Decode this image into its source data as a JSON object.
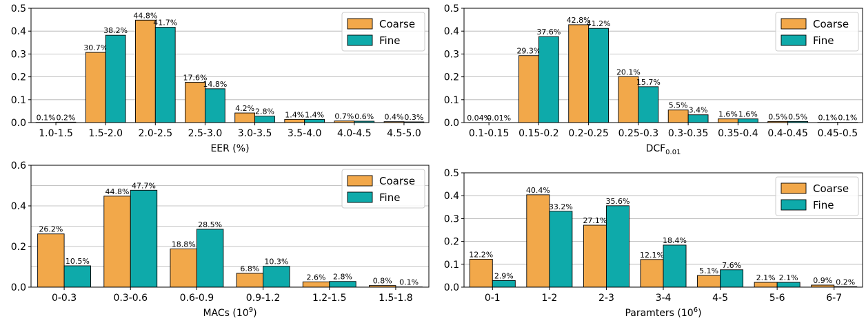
{
  "colors": {
    "coarse": "#f2a84a",
    "fine": "#0eaaaa",
    "grid": "#b0b0b0",
    "edge": "#000000"
  },
  "chart_data": [
    {
      "type": "bar",
      "xlabel": "EER (%)",
      "xlabel_sub": "",
      "xlabel_sup": "",
      "ylim": [
        0,
        0.5
      ],
      "yticks": [
        "0.0",
        "0.1",
        "0.2",
        "0.3",
        "0.4",
        "0.5"
      ],
      "categories": [
        "1.0-1.5",
        "1.5-2.0",
        "2.0-2.5",
        "2.5-3.0",
        "3.0-3.5",
        "3.5-4.0",
        "4.0-4.5",
        "4.5-5.0"
      ],
      "series": [
        {
          "name": "Coarse",
          "values": [
            0.001,
            0.307,
            0.448,
            0.176,
            0.042,
            0.014,
            0.007,
            0.004
          ],
          "labels": [
            "0.1%",
            "30.7%",
            "44.8%",
            "17.6%",
            "4.2%",
            "1.4%",
            "0.7%",
            "0.4%"
          ]
        },
        {
          "name": "Fine",
          "values": [
            0.002,
            0.382,
            0.417,
            0.148,
            0.028,
            0.014,
            0.006,
            0.003
          ],
          "labels": [
            "0.2%",
            "38.2%",
            "41.7%",
            "14.8%",
            "2.8%",
            "1.4%",
            "0.6%",
            "0.3%"
          ]
        }
      ],
      "legend": "top-right",
      "grid": "y"
    },
    {
      "type": "bar",
      "xlabel": "DCF",
      "xlabel_sub": "0.01",
      "xlabel_sup": "",
      "ylim": [
        0,
        0.5
      ],
      "yticks": [
        "0.0",
        "0.1",
        "0.2",
        "0.3",
        "0.4",
        "0.5"
      ],
      "categories": [
        "0.1-0.15",
        "0.15-0.2",
        "0.2-0.25",
        "0.25-0.3",
        "0.3-0.35",
        "0.35-0.4",
        "0.4-0.45",
        "0.45-0.5"
      ],
      "series": [
        {
          "name": "Coarse",
          "values": [
            0.0004,
            0.293,
            0.428,
            0.201,
            0.055,
            0.016,
            0.005,
            0.001
          ],
          "labels": [
            "0.04%",
            "29.3%",
            "42.8%",
            "20.1%",
            "5.5%",
            "1.6%",
            "0.5%",
            "0.1%"
          ]
        },
        {
          "name": "Fine",
          "values": [
            0.0001,
            0.376,
            0.412,
            0.157,
            0.034,
            0.016,
            0.005,
            0.001
          ],
          "labels": [
            "0.01%",
            "37.6%",
            "41.2%",
            "15.7%",
            "3.4%",
            "1.6%",
            "0.5%",
            "0.1%"
          ]
        }
      ],
      "legend": "top-right",
      "grid": "y"
    },
    {
      "type": "bar",
      "xlabel": "MACs (10",
      "xlabel_sub": "",
      "xlabel_sup": "9",
      "xlabel_tail": ")",
      "ylim": [
        0,
        0.6
      ],
      "yticks": [
        "0.0",
        "0.2",
        "0.4",
        "0.6"
      ],
      "ytick_values": [
        0,
        0.2,
        0.4,
        0.6
      ],
      "grid_values": [
        0.1,
        0.2,
        0.3,
        0.4,
        0.5
      ],
      "categories": [
        "0-0.3",
        "0.3-0.6",
        "0.6-0.9",
        "0.9-1.2",
        "1.2-1.5",
        "1.5-1.8"
      ],
      "series": [
        {
          "name": "Coarse",
          "values": [
            0.262,
            0.448,
            0.188,
            0.068,
            0.026,
            0.008
          ],
          "labels": [
            "26.2%",
            "44.8%",
            "18.8%",
            "6.8%",
            "2.6%",
            "0.8%"
          ]
        },
        {
          "name": "Fine",
          "values": [
            0.105,
            0.477,
            0.285,
            0.103,
            0.028,
            0.001
          ],
          "labels": [
            "10.5%",
            "47.7%",
            "28.5%",
            "10.3%",
            "2.8%",
            "0.1%"
          ]
        }
      ],
      "legend": "top-right",
      "grid": "y"
    },
    {
      "type": "bar",
      "xlabel": "Paramters (10",
      "xlabel_sub": "",
      "xlabel_sup": "6",
      "xlabel_tail": ")",
      "ylim": [
        0,
        0.5
      ],
      "yticks": [
        "0.0",
        "0.1",
        "0.2",
        "0.3",
        "0.4",
        "0.5"
      ],
      "categories": [
        "0-1",
        "1-2",
        "2-3",
        "3-4",
        "4-5",
        "5-6",
        "6-7"
      ],
      "series": [
        {
          "name": "Coarse",
          "values": [
            0.122,
            0.404,
            0.271,
            0.121,
            0.051,
            0.021,
            0.009
          ],
          "labels": [
            "12.2%",
            "40.4%",
            "27.1%",
            "12.1%",
            "5.1%",
            "2.1%",
            "0.9%"
          ]
        },
        {
          "name": "Fine",
          "values": [
            0.029,
            0.332,
            0.356,
            0.184,
            0.076,
            0.021,
            0.002
          ],
          "labels": [
            "2.9%",
            "33.2%",
            "35.6%",
            "18.4%",
            "7.6%",
            "2.1%",
            "0.2%"
          ]
        }
      ],
      "legend": "top-right",
      "grid": "y"
    }
  ]
}
